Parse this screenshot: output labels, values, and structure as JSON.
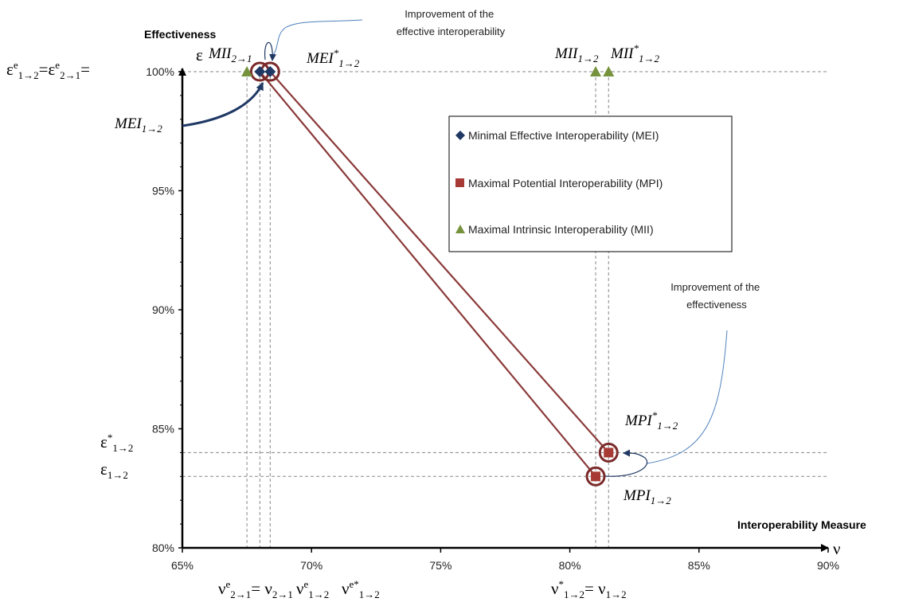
{
  "chart_data": {
    "type": "scatter",
    "xlabel": "Interoperability Measure",
    "ylabel": "Effectiveness",
    "x_symbol": "ν",
    "y_symbol": "ε",
    "xlim": [
      65,
      90
    ],
    "ylim": [
      80,
      100
    ],
    "x_ticks": [
      "65%",
      "70%",
      "75%",
      "80%",
      "85%",
      "90%"
    ],
    "y_ticks": [
      "80%",
      "85%",
      "90%",
      "95%",
      "100%"
    ],
    "x_tick_values": [
      65,
      70,
      75,
      80,
      85,
      90
    ],
    "y_tick_values": [
      80,
      85,
      90,
      95,
      100
    ],
    "legend_position": "right",
    "series": [
      {
        "name": "Minimal Effective Interoperability (MEI)",
        "marker": "diamond",
        "color": "#1f3864",
        "points": [
          {
            "x": 68.0,
            "y": 100
          },
          {
            "x": 68.4,
            "y": 100
          }
        ]
      },
      {
        "name": "Maximal Potential Interoperability (MPI)",
        "marker": "square",
        "color": "#a83a36",
        "points": [
          {
            "x": 81.0,
            "y": 83
          },
          {
            "x": 81.5,
            "y": 84
          }
        ]
      },
      {
        "name": "Maximal Intrinsic Interoperability (MII)",
        "marker": "triangle",
        "color": "#76923c",
        "points": [
          {
            "x": 67.5,
            "y": 100
          },
          {
            "x": 81.0,
            "y": 100
          },
          {
            "x": 81.5,
            "y": 100
          }
        ]
      }
    ],
    "lines": [
      {
        "from": {
          "x": 68.0,
          "y": 100
        },
        "to": {
          "x": 81.0,
          "y": 83
        }
      },
      {
        "from": {
          "x": 68.4,
          "y": 100
        },
        "to": {
          "x": 81.5,
          "y": 84
        }
      }
    ],
    "circled_points": [
      {
        "x": 68.0,
        "y": 100
      },
      {
        "x": 68.4,
        "y": 100
      },
      {
        "x": 81.0,
        "y": 83
      },
      {
        "x": 81.5,
        "y": 84
      }
    ],
    "guides_x": [
      67.5,
      68.0,
      68.4,
      81.0,
      81.5
    ],
    "guides_y": [
      100,
      84,
      83
    ],
    "annotations": {
      "improve_interop": [
        "Improvement of the",
        "effective interoperability"
      ],
      "improve_effect": [
        "Improvement of the",
        "effectiveness"
      ]
    },
    "point_labels": {
      "mii21": {
        "base": "MII",
        "sub": "2→1"
      },
      "mei12": {
        "base": "MEI",
        "sub": "1→2"
      },
      "mei12s": {
        "base": "MEI",
        "sup": "*",
        "sub": "1→2"
      },
      "mii12": {
        "base": "MII",
        "sub": "1→2"
      },
      "mii12s": {
        "base": "MII",
        "sup": "*",
        "sub": "1→2"
      },
      "mpi12s": {
        "base": "MPI",
        "sup": "*",
        "sub": "1→2"
      },
      "mpi12": {
        "base": "MPI",
        "sub": "1→2"
      }
    },
    "axis_symbols": {
      "eps_top": "εe1→2=εe2→1=",
      "eps_star": "ε*1→2",
      "eps": "ε1→2",
      "nu_e21": "νe2→1= ν2→1",
      "nu_e12": "νe1→2",
      "nu_es12": "νe*1→2",
      "nu_star": "ν*1→2= ν1→2"
    }
  }
}
